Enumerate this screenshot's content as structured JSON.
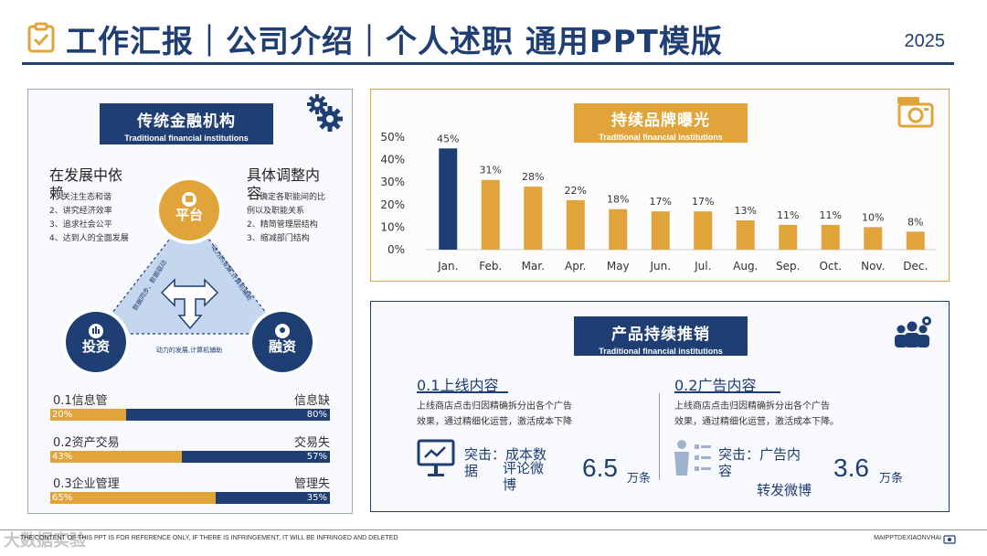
{
  "header": {
    "title": "工作汇报｜公司介绍｜个人述职 通用PPT模版",
    "year": "2025",
    "accent": "#1f3e73",
    "gold": "#e0a43a"
  },
  "left_panel": {
    "label_main": "传统金融机构",
    "label_sub": "Traditional financial institutions",
    "left_heading_1": "在发展中依",
    "left_heading_2": "赖",
    "left_items": [
      "关注生态和谐",
      "2、讲究经济效率",
      "3、追求社会公平",
      "4、达到人的全面发展"
    ],
    "right_heading_1": "具体调整内",
    "right_heading_2": "容",
    "right_items": [
      "确定各职能间的比",
      "例以及职能关系",
      "2、精简管理层结构",
      "3、缩减部门结构"
    ],
    "node_top": "平台",
    "node_left": "投资",
    "node_right": "融资",
    "edge_left": "数据同步、数据驱动",
    "edge_right": "动力的发展,计算机辅助",
    "edge_bottom": "动力的发展,计算机辅助",
    "bars": [
      {
        "left": "0.1信息管",
        "right": "信息缺",
        "pct_left": "20%",
        "pct_right": "80%",
        "value": 0.2
      },
      {
        "left": "0.2资产交易",
        "right": "交易失",
        "pct_left": "43%",
        "pct_right": "57%",
        "value": 0.43
      },
      {
        "left": "0.3企业管理",
        "right": "管理失",
        "pct_left": "65%",
        "pct_right": "35%",
        "value": 0.65
      }
    ]
  },
  "chart_panel": {
    "label_main": "持续品牌曝光",
    "label_sub": "Traditional financial institutions",
    "icon": "camera-icon"
  },
  "chart_data": {
    "type": "bar",
    "categories": [
      "Jan.",
      "Feb.",
      "Mar.",
      "Apr.",
      "May",
      "Jun.",
      "Jul.",
      "Aug.",
      "Sep.",
      "Oct.",
      "Nov.",
      "Dec."
    ],
    "values": [
      45,
      31,
      28,
      22,
      18,
      17,
      17,
      13,
      11,
      11,
      10,
      8
    ],
    "data_labels": [
      "45%",
      "31%",
      "28%",
      "22%",
      "18%",
      "17%",
      "17%",
      "13%",
      "11%",
      "11%",
      "10%",
      "8%"
    ],
    "y_ticks": [
      "0%",
      "10%",
      "20%",
      "30%",
      "40%",
      "50%"
    ],
    "ylim": [
      0,
      50
    ],
    "highlight_color": "#1f3e73",
    "bar_color": "#e0a43a",
    "grid": false
  },
  "bottom_panel": {
    "label_main": "产品持续推销",
    "label_sub": "Traditional financial institutions",
    "sec1": {
      "title": "0.1上线内容",
      "body_1": "上线商店点击归因精确拆分出各个广告",
      "body_2": "效果，通过精细化运营，激活成本下降",
      "hl_1": "突击：成本数",
      "hl_2": "据",
      "hl_3": "评论微",
      "hl_4": "博",
      "number": "6.5",
      "unit": "万条"
    },
    "sec2": {
      "title": "0.2广告内容",
      "body_1": "上线商店点击归因精确拆分出各个广告",
      "body_2": "效果，通过精细化运营，激活成本下降。",
      "hl_1": "突击：广告内",
      "hl_2": "容",
      "hl_3": "转发微博",
      "number": "3.6",
      "unit": "万条"
    }
  },
  "footer": {
    "disclaimer": "THE CONTENT OF THIS PPT IS FOR REFERENCE ONLY, IF THERE IS INFRINGEMENT, IT WILL BE INFRINGED AND DELETED",
    "brand": "MAIPPTDEXIAONVHAI",
    "watermark": "大数据实验"
  }
}
